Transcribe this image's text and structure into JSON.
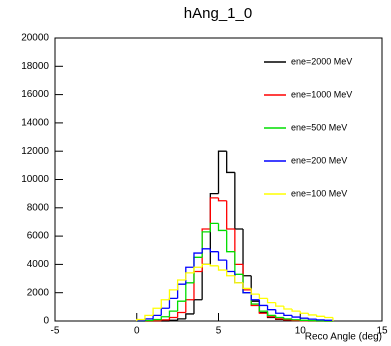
{
  "chart_data": {
    "type": "histogram",
    "title": "hAng_1_0",
    "x_label": "Reco Angle (deg)",
    "bins": [
      0,
      0.5,
      1,
      1.5,
      2,
      2.5,
      3,
      3.5,
      4,
      4.5,
      5,
      5.5,
      6,
      6.5,
      7,
      7.5,
      8,
      8.5,
      9,
      9.5,
      10,
      10.5,
      11,
      11.5,
      12
    ],
    "xlim": [
      -5,
      15
    ],
    "xticks": [
      -5,
      0,
      5,
      10,
      15
    ],
    "ylim": [
      0,
      20000
    ],
    "yticks": [
      0,
      2000,
      4000,
      6000,
      8000,
      10000,
      12000,
      14000,
      16000,
      18000,
      20000
    ],
    "legend": "top-right",
    "series": [
      {
        "name": "ene=2000 MeV",
        "color": "#000000",
        "values": [
          0,
          0,
          0,
          0,
          50,
          150,
          500,
          1500,
          4000,
          9000,
          12000,
          10500,
          6500,
          3200,
          1400,
          600,
          250,
          120,
          60,
          30,
          10,
          0,
          0,
          0
        ]
      },
      {
        "name": "ene=1000 MeV",
        "color": "#ff0000",
        "values": [
          0,
          0,
          20,
          80,
          250,
          600,
          1500,
          3500,
          6500,
          8700,
          8500,
          6500,
          4000,
          2200,
          1100,
          550,
          300,
          150,
          80,
          40,
          20,
          10,
          0,
          0
        ]
      },
      {
        "name": "ene=500 MeV",
        "color": "#00dd00",
        "values": [
          0,
          30,
          100,
          300,
          700,
          1400,
          2700,
          4500,
          6300,
          6900,
          6400,
          4900,
          3300,
          2000,
          1200,
          700,
          400,
          250,
          150,
          90,
          50,
          30,
          15,
          0
        ]
      },
      {
        "name": "ene=200 MeV",
        "color": "#0000ff",
        "values": [
          20,
          150,
          400,
          900,
          1600,
          2600,
          3800,
          4800,
          5100,
          4900,
          4300,
          3500,
          2700,
          2000,
          1500,
          1100,
          800,
          550,
          400,
          280,
          200,
          130,
          80,
          50
        ]
      },
      {
        "name": "ene=100 MeV",
        "color": "#ffff00",
        "values": [
          100,
          400,
          900,
          1500,
          2200,
          2900,
          3400,
          3800,
          4000,
          3900,
          3600,
          3200,
          2700,
          2300,
          1900,
          1600,
          1300,
          1050,
          850,
          700,
          550,
          430,
          330,
          250
        ]
      }
    ]
  }
}
